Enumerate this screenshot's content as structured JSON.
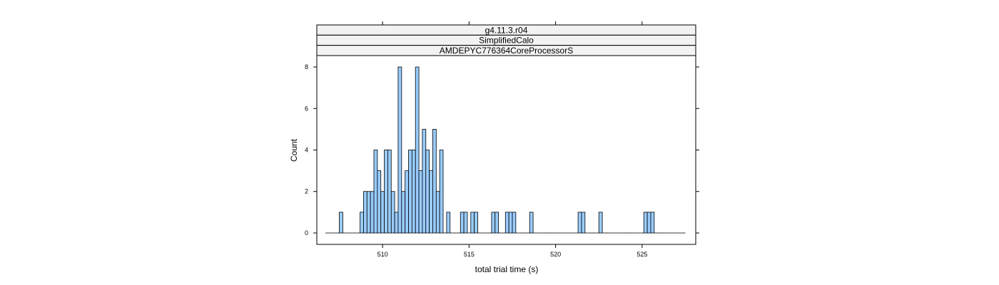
{
  "chart_data": {
    "type": "bar",
    "strips": [
      "g4.11.3.r04",
      "SimplifiedCalo",
      "AMDEPYC776364CoreProcessorS"
    ],
    "xlabel": "total trial time (s)",
    "ylabel": "Count",
    "xlim": [
      506.2,
      528.1
    ],
    "ylim": [
      -0.55,
      8.55
    ],
    "xticks": [
      510,
      515,
      520,
      525
    ],
    "yticks": [
      0,
      2,
      4,
      6,
      8
    ],
    "bin_start": 506.7,
    "bin_width": 0.2,
    "bin_count": 104,
    "counts": [
      0,
      0,
      0,
      0,
      1,
      0,
      0,
      0,
      0,
      0,
      1,
      2,
      2,
      2,
      4,
      3,
      2,
      4,
      4,
      2,
      1,
      8,
      2,
      3,
      4,
      4,
      8,
      3,
      5,
      4,
      3,
      5,
      2,
      4,
      0,
      1,
      0,
      0,
      0,
      1,
      1,
      0,
      1,
      1,
      0,
      0,
      0,
      0,
      1,
      1,
      0,
      0,
      1,
      1,
      1,
      0,
      0,
      0,
      0,
      1,
      0,
      0,
      0,
      0,
      0,
      0,
      0,
      0,
      0,
      0,
      0,
      0,
      0,
      1,
      1,
      0,
      0,
      0,
      0,
      1,
      0,
      0,
      0,
      0,
      0,
      0,
      0,
      0,
      0,
      0,
      0,
      0,
      1,
      1,
      1,
      0,
      0,
      0,
      0,
      0,
      0,
      0,
      0,
      0
    ],
    "bar_color": "#99ccff",
    "grid": false,
    "legend": "none"
  }
}
